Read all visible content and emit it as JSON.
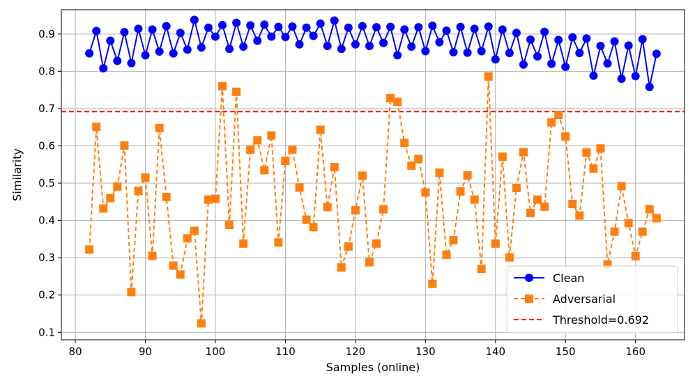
{
  "chart_data": {
    "type": "line",
    "title": "",
    "xlabel": "Samples (online)",
    "ylabel": "Similarity",
    "xlim": [
      78,
      167
    ],
    "ylim": [
      0.08,
      0.965
    ],
    "xticks": [
      80,
      90,
      100,
      110,
      120,
      130,
      140,
      150,
      160
    ],
    "yticks": [
      0.1,
      0.2,
      0.3,
      0.4,
      0.5,
      0.6,
      0.7,
      0.8,
      0.9
    ],
    "grid": true,
    "legend_position": "bottom-right",
    "x": [
      82,
      83,
      84,
      85,
      86,
      87,
      88,
      89,
      90,
      91,
      92,
      93,
      94,
      95,
      96,
      97,
      98,
      99,
      100,
      101,
      102,
      103,
      104,
      105,
      106,
      107,
      108,
      109,
      110,
      111,
      112,
      113,
      114,
      115,
      116,
      117,
      118,
      119,
      120,
      121,
      122,
      123,
      124,
      125,
      126,
      127,
      128,
      129,
      130,
      131,
      132,
      133,
      134,
      135,
      136,
      137,
      138,
      139,
      140,
      141,
      142,
      143,
      144,
      145,
      146,
      147,
      148,
      149,
      150,
      151,
      152,
      153,
      154,
      155,
      156,
      157,
      158,
      159,
      160,
      161,
      162,
      163
    ],
    "series": [
      {
        "name": "Clean",
        "color": "#0000ff",
        "linestyle": "solid",
        "marker": "circle",
        "values": [
          0.848,
          0.908,
          0.808,
          0.882,
          0.828,
          0.905,
          0.822,
          0.914,
          0.843,
          0.912,
          0.853,
          0.921,
          0.848,
          0.903,
          0.858,
          0.938,
          0.864,
          0.917,
          0.893,
          0.924,
          0.86,
          0.93,
          0.866,
          0.923,
          0.882,
          0.925,
          0.893,
          0.919,
          0.892,
          0.92,
          0.872,
          0.917,
          0.895,
          0.928,
          0.868,
          0.936,
          0.86,
          0.917,
          0.872,
          0.921,
          0.868,
          0.918,
          0.876,
          0.919,
          0.843,
          0.912,
          0.866,
          0.918,
          0.854,
          0.922,
          0.878,
          0.909,
          0.851,
          0.919,
          0.85,
          0.914,
          0.854,
          0.92,
          0.832,
          0.912,
          0.849,
          0.903,
          0.818,
          0.885,
          0.84,
          0.906,
          0.82,
          0.884,
          0.812,
          0.891,
          0.849,
          0.888,
          0.788,
          0.868,
          0.821,
          0.88,
          0.78,
          0.869,
          0.787,
          0.886,
          0.758,
          0.847
        ]
      },
      {
        "name": "Adversarial",
        "color": "#ff7f0e",
        "linestyle": "dashed",
        "marker": "square",
        "values": [
          0.322,
          0.651,
          0.432,
          0.46,
          0.491,
          0.601,
          0.208,
          0.479,
          0.515,
          0.305,
          0.648,
          0.463,
          0.279,
          0.255,
          0.352,
          0.372,
          0.124,
          0.456,
          0.458,
          0.76,
          0.388,
          0.745,
          0.338,
          0.59,
          0.615,
          0.535,
          0.628,
          0.341,
          0.56,
          0.59,
          0.488,
          0.402,
          0.382,
          0.643,
          0.436,
          0.543,
          0.274,
          0.33,
          0.427,
          0.52,
          0.288,
          0.338,
          0.43,
          0.728,
          0.718,
          0.608,
          0.547,
          0.565,
          0.475,
          0.23,
          0.528,
          0.308,
          0.347,
          0.478,
          0.521,
          0.456,
          0.27,
          0.786,
          0.338,
          0.571,
          0.301,
          0.487,
          0.583,
          0.42,
          0.456,
          0.437,
          0.663,
          0.683,
          0.625,
          0.444,
          0.413,
          0.582,
          0.539,
          0.593,
          0.282,
          0.37,
          0.492,
          0.393,
          0.304,
          0.37,
          0.43,
          0.406
        ]
      }
    ],
    "threshold": {
      "name": "Threshold=0.692",
      "value": 0.692,
      "color": "#ff0000",
      "linestyle": "dashed"
    }
  }
}
